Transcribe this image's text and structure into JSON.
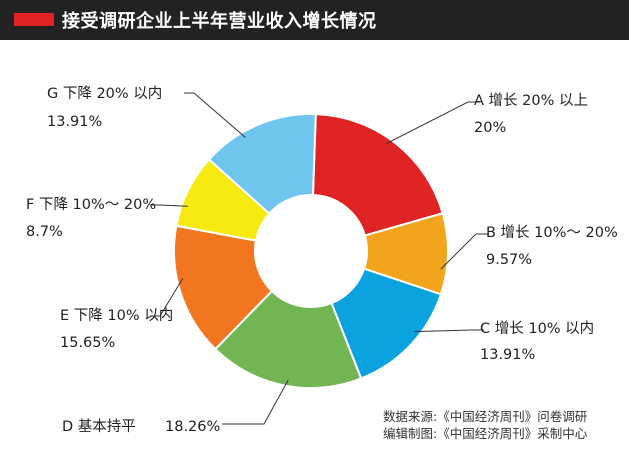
{
  "title": "接受调研企业上半年营业收入增长情况",
  "colors": {
    "title_bg": "#222222",
    "title_accent": "#e02424"
  },
  "chart_data": {
    "type": "pie",
    "variant": "donut",
    "title": "接受调研企业上半年营业收入增长情况",
    "slices": [
      {
        "label": "A 增长 20% 以上",
        "value": 20,
        "value_label": "20%",
        "color": "#e02424"
      },
      {
        "label": "B 增长 10%～ 20%",
        "value": 9.57,
        "value_label": "9.57%",
        "color": "#f2a51c"
      },
      {
        "label": "C 增长 10% 以内",
        "value": 13.91,
        "value_label": "13.91%",
        "color": "#0aa3e0"
      },
      {
        "label": "D 基本持平",
        "value": 18.26,
        "value_label": "18.26%",
        "color": "#72b553"
      },
      {
        "label": "E 下降 10% 以内",
        "value": 15.65,
        "value_label": "15.65%",
        "color": "#f27620"
      },
      {
        "label": "F 下降 10%～ 20%",
        "value": 8.7,
        "value_label": "8.7%",
        "color": "#f7ea10"
      },
      {
        "label": "G 下降 20% 以内",
        "value": 13.91,
        "value_label": "13.91%",
        "color": "#6ec6ef"
      }
    ]
  },
  "source": {
    "line1": "数据来源:《中国经济周刊》问卷调研",
    "line2": "编辑制图:《中国经济周刊》采制中心"
  }
}
